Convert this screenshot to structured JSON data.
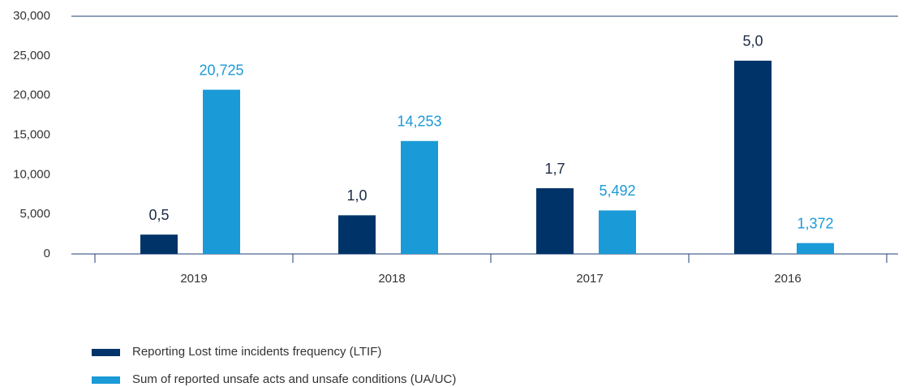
{
  "chart_data": {
    "type": "bar",
    "categories": [
      "2019",
      "2018",
      "2017",
      "2016"
    ],
    "series": [
      {
        "name": "Reporting Lost time incidents frequency (LTIF)",
        "color": "#003468",
        "axis": "y2",
        "values": [
          0.5,
          1.0,
          1.7,
          5.0
        ],
        "value_labels": [
          "0,5",
          "1,0",
          "1,7",
          "5,0"
        ]
      },
      {
        "name": "Sum of reported unsafe acts and unsafe conditions (UA/UC)",
        "color": "#1b9ad8",
        "values": [
          20725,
          14253,
          5492,
          1372
        ],
        "value_labels": [
          "20,725",
          "14,253",
          "5,492",
          "1,372"
        ]
      }
    ],
    "ylim": [
      0,
      30000
    ],
    "yticks": [
      {
        "value": 0,
        "label": "0"
      },
      {
        "value": 5000,
        "label": "5,000"
      },
      {
        "value": 10000,
        "label": "10,000"
      },
      {
        "value": 15000,
        "label": "15,000"
      },
      {
        "value": 20000,
        "label": "20,000"
      },
      {
        "value": 25000,
        "label": "25,000"
      },
      {
        "value": 30000,
        "label": "30,000"
      }
    ],
    "y2lim": [
      0,
      6.15
    ],
    "legend": "bottom-left"
  }
}
